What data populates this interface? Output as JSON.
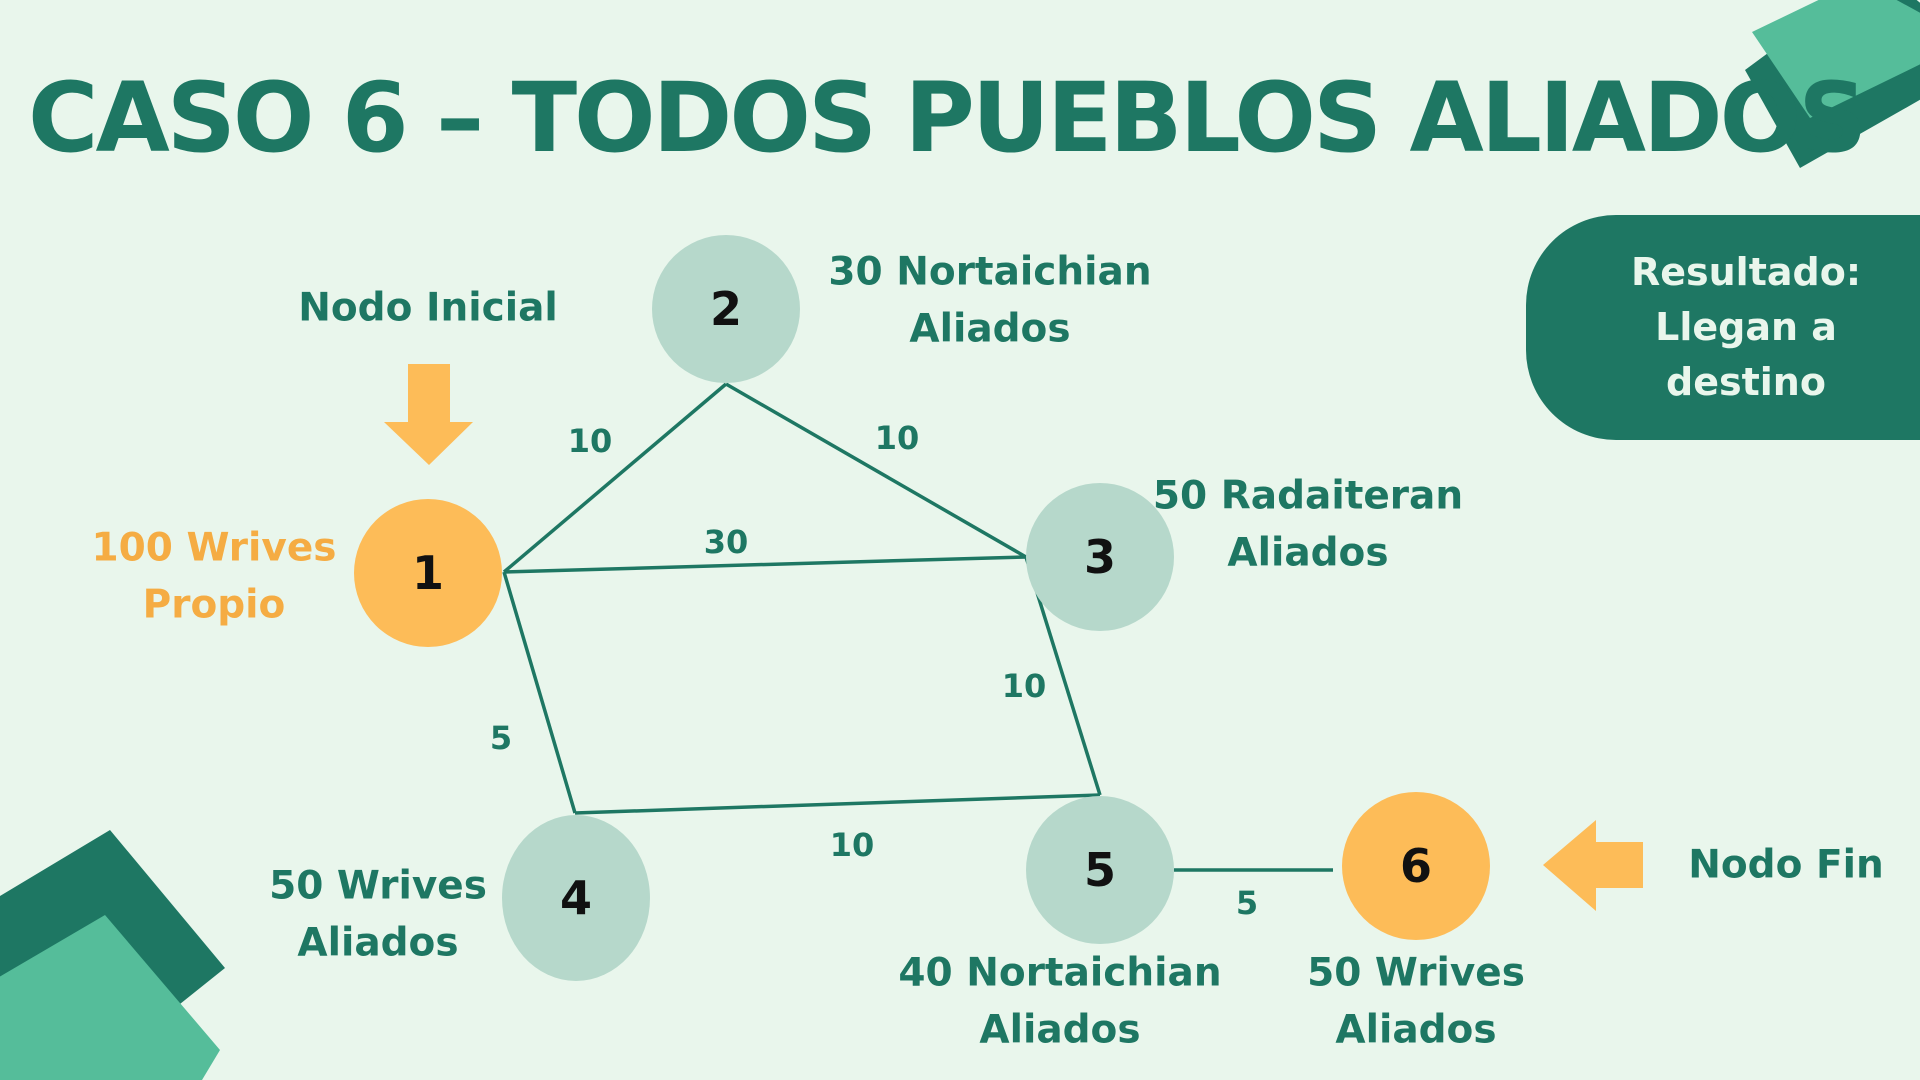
{
  "title": "CASO 6 – TODOS PUEBLOS ALIADOS",
  "colors": {
    "background": "#e9f6ec",
    "dark_green": "#1e7763",
    "light_green": "#55bd9a",
    "node_gray": "#b6d8cb",
    "orange": "#fdbc58",
    "orange_text": "#f5ac43"
  },
  "labels": {
    "start": "Nodo Inicial",
    "end": "Nodo Fin"
  },
  "result": {
    "line1": "Resultado:",
    "line2": "Llegan a destino"
  },
  "nodes": [
    {
      "id": "1",
      "kind": "start",
      "line1": "100 Wrives",
      "line2": "Propio"
    },
    {
      "id": "2",
      "kind": "ally",
      "line1": "30 Nortaichian",
      "line2": "Aliados"
    },
    {
      "id": "3",
      "kind": "ally",
      "line1": "50 Radaiteran",
      "line2": "Aliados"
    },
    {
      "id": "4",
      "kind": "ally",
      "line1": "50 Wrives",
      "line2": "Aliados"
    },
    {
      "id": "5",
      "kind": "ally",
      "line1": "40 Nortaichian",
      "line2": "Aliados"
    },
    {
      "id": "6",
      "kind": "end",
      "line1": "50 Wrives",
      "line2": "Aliados"
    }
  ],
  "edges": [
    {
      "from": "1",
      "to": "2",
      "weight": "10"
    },
    {
      "from": "2",
      "to": "3",
      "weight": "10"
    },
    {
      "from": "1",
      "to": "3",
      "weight": "30"
    },
    {
      "from": "1",
      "to": "4",
      "weight": "5"
    },
    {
      "from": "3",
      "to": "5",
      "weight": "10"
    },
    {
      "from": "4",
      "to": "5",
      "weight": "10"
    },
    {
      "from": "5",
      "to": "6",
      "weight": "5"
    }
  ]
}
